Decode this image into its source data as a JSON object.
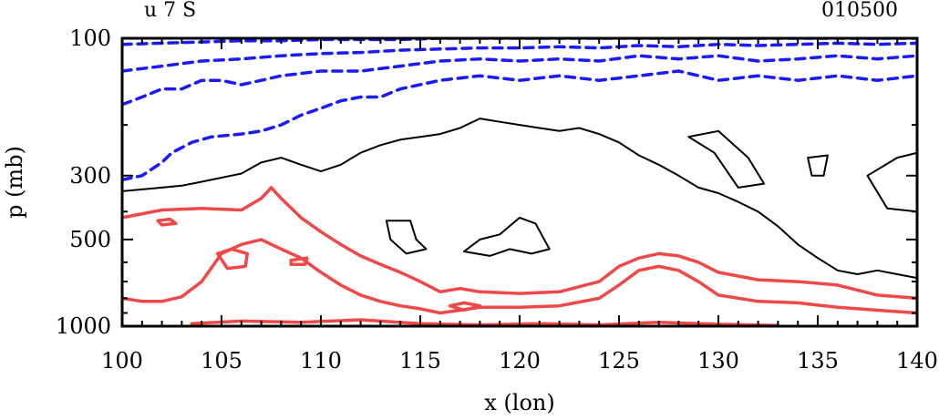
{
  "chart_data": {
    "type": "contour",
    "title_left": "u 7 S",
    "title_right": "010500",
    "xlabel": "x (lon)",
    "ylabel": "p (mb)",
    "xlim": [
      100,
      140
    ],
    "ylim": [
      1000,
      100
    ],
    "y_scale": "log",
    "x_ticks": [
      100,
      105,
      110,
      115,
      120,
      125,
      130,
      135,
      140
    ],
    "y_ticks": [
      100,
      300,
      500,
      1000
    ],
    "colors": {
      "negative": "#1a1aff",
      "zero": "#000000",
      "positive": "#f04848"
    },
    "contours": [
      {
        "kind": "zero",
        "style": "solid",
        "color": "#000000",
        "points": [
          [
            100,
            340
          ],
          [
            101,
            335
          ],
          [
            102,
            330
          ],
          [
            103,
            325
          ],
          [
            104,
            315
          ],
          [
            105,
            305
          ],
          [
            106,
            295
          ],
          [
            107,
            270
          ],
          [
            108,
            260
          ],
          [
            109,
            275
          ],
          [
            110,
            290
          ],
          [
            111,
            275
          ],
          [
            112,
            250
          ],
          [
            113,
            235
          ],
          [
            114,
            225
          ],
          [
            115,
            220
          ],
          [
            116,
            215
          ],
          [
            117,
            205
          ],
          [
            118,
            190
          ],
          [
            119,
            195
          ],
          [
            120,
            200
          ],
          [
            121,
            205
          ],
          [
            122,
            210
          ],
          [
            123,
            205
          ],
          [
            124,
            215
          ],
          [
            125,
            230
          ],
          [
            126,
            255
          ],
          [
            127,
            275
          ],
          [
            128,
            300
          ],
          [
            129,
            330
          ],
          [
            130,
            345
          ],
          [
            131,
            370
          ],
          [
            132,
            400
          ],
          [
            133,
            450
          ],
          [
            134,
            520
          ],
          [
            135,
            580
          ],
          [
            136,
            640
          ],
          [
            137,
            660
          ],
          [
            138,
            640
          ],
          [
            139,
            660
          ],
          [
            140,
            680
          ]
        ]
      },
      {
        "kind": "zero",
        "style": "solid",
        "color": "#000000",
        "points": [
          [
            117.2,
            550
          ],
          [
            118,
            500
          ],
          [
            119,
            480
          ],
          [
            120,
            420
          ],
          [
            120.8,
            440
          ],
          [
            121.5,
            540
          ],
          [
            120.6,
            560
          ],
          [
            119.5,
            540
          ],
          [
            118.5,
            570
          ],
          [
            117.2,
            550
          ]
        ]
      },
      {
        "kind": "zero",
        "style": "solid",
        "color": "#000000",
        "points": [
          [
            113.3,
            430
          ],
          [
            114.5,
            430
          ],
          [
            114.8,
            500
          ],
          [
            115.3,
            540
          ],
          [
            114.3,
            560
          ],
          [
            113.5,
            500
          ],
          [
            113.3,
            430
          ]
        ]
      },
      {
        "kind": "zero",
        "style": "solid",
        "color": "#000000",
        "points": [
          [
            128.5,
            220
          ],
          [
            130,
            210
          ],
          [
            131.5,
            260
          ],
          [
            132.3,
            320
          ],
          [
            131,
            330
          ],
          [
            129.8,
            250
          ],
          [
            128.5,
            220
          ]
        ]
      },
      {
        "kind": "zero",
        "style": "solid",
        "color": "#000000",
        "points": [
          [
            134.5,
            260
          ],
          [
            135.5,
            255
          ],
          [
            135.3,
            300
          ],
          [
            134.7,
            300
          ],
          [
            134.5,
            260
          ]
        ]
      },
      {
        "kind": "zero",
        "style": "solid",
        "color": "#000000",
        "points": [
          [
            137.5,
            300
          ],
          [
            139,
            260
          ],
          [
            140,
            250
          ],
          [
            140,
            400
          ],
          [
            138.5,
            390
          ],
          [
            137.5,
            300
          ]
        ]
      },
      {
        "kind": "negative",
        "style": "dashed",
        "color": "#1a1aff",
        "points": [
          [
            100,
            310
          ],
          [
            101,
            300
          ],
          [
            102,
            270
          ],
          [
            102.5,
            250
          ],
          [
            103.5,
            230
          ],
          [
            104.5,
            220
          ],
          [
            106,
            215
          ],
          [
            107,
            210
          ],
          [
            108,
            200
          ],
          [
            109,
            185
          ],
          [
            110,
            175
          ],
          [
            111,
            165
          ],
          [
            112,
            160
          ],
          [
            113,
            160
          ],
          [
            114,
            150
          ],
          [
            116,
            140
          ],
          [
            118,
            135
          ],
          [
            120,
            140
          ],
          [
            122,
            135
          ],
          [
            124,
            140
          ],
          [
            126,
            135
          ],
          [
            128,
            130
          ],
          [
            130,
            140
          ],
          [
            132,
            135
          ],
          [
            134,
            140
          ],
          [
            136,
            135
          ],
          [
            138,
            140
          ],
          [
            140,
            135
          ]
        ]
      },
      {
        "kind": "negative",
        "style": "dashed",
        "color": "#1a1aff",
        "points": [
          [
            100,
            170
          ],
          [
            101,
            160
          ],
          [
            102,
            150
          ],
          [
            103,
            150
          ],
          [
            104,
            140
          ],
          [
            105,
            140
          ],
          [
            106,
            145
          ],
          [
            107,
            140
          ],
          [
            108,
            135
          ],
          [
            110,
            130
          ],
          [
            112,
            130
          ],
          [
            114,
            125
          ],
          [
            116,
            120
          ],
          [
            118,
            118
          ],
          [
            120,
            120
          ],
          [
            122,
            118
          ],
          [
            124,
            120
          ],
          [
            126,
            115
          ],
          [
            128,
            118
          ],
          [
            130,
            115
          ],
          [
            132,
            120
          ],
          [
            134,
            118
          ],
          [
            136,
            115
          ],
          [
            138,
            118
          ],
          [
            140,
            115
          ]
        ]
      },
      {
        "kind": "negative",
        "style": "dashed",
        "color": "#1a1aff",
        "points": [
          [
            100,
            130
          ],
          [
            102,
            125
          ],
          [
            104,
            120
          ],
          [
            106,
            118
          ],
          [
            108,
            115
          ],
          [
            110,
            113
          ],
          [
            112,
            112
          ],
          [
            114,
            110
          ],
          [
            116,
            109
          ],
          [
            118,
            108
          ],
          [
            120,
            108
          ],
          [
            122,
            107
          ],
          [
            124,
            108
          ],
          [
            126,
            106
          ],
          [
            128,
            107
          ],
          [
            130,
            105
          ],
          [
            132,
            106
          ],
          [
            134,
            105
          ],
          [
            136,
            104
          ],
          [
            138,
            105
          ],
          [
            140,
            104
          ]
        ]
      },
      {
        "kind": "negative",
        "style": "dashed",
        "color": "#1a1aff",
        "points": [
          [
            100,
            105
          ],
          [
            102,
            104
          ],
          [
            104,
            103
          ],
          [
            106,
            102
          ],
          [
            108,
            102
          ],
          [
            110,
            101
          ],
          [
            112,
            101
          ],
          [
            114,
            101
          ],
          [
            116,
            100
          ],
          [
            118,
            100
          ],
          [
            120,
            100
          ],
          [
            122,
            100
          ],
          [
            124,
            100
          ],
          [
            126,
            100
          ],
          [
            128,
            100
          ],
          [
            130,
            100
          ],
          [
            132,
            100
          ],
          [
            134,
            100
          ],
          [
            136,
            100
          ],
          [
            138,
            100
          ],
          [
            140,
            100
          ]
        ]
      },
      {
        "kind": "positive",
        "style": "solid",
        "color": "#f04848",
        "points": [
          [
            100,
            420
          ],
          [
            102,
            395
          ],
          [
            104,
            390
          ],
          [
            106,
            395
          ],
          [
            107,
            360
          ],
          [
            107.5,
            330
          ],
          [
            108,
            360
          ],
          [
            109,
            420
          ],
          [
            110,
            470
          ],
          [
            111,
            520
          ],
          [
            112,
            570
          ],
          [
            113,
            610
          ],
          [
            114,
            650
          ],
          [
            115,
            700
          ],
          [
            116,
            760
          ],
          [
            117,
            740
          ],
          [
            118,
            760
          ],
          [
            120,
            770
          ],
          [
            122,
            760
          ],
          [
            124,
            700
          ],
          [
            125,
            620
          ],
          [
            126,
            580
          ],
          [
            127,
            560
          ],
          [
            128,
            570
          ],
          [
            129,
            600
          ],
          [
            130,
            650
          ],
          [
            132,
            690
          ],
          [
            134,
            700
          ],
          [
            136,
            720
          ],
          [
            138,
            780
          ],
          [
            140,
            800
          ]
        ]
      },
      {
        "kind": "positive",
        "style": "solid",
        "color": "#f04848",
        "points": [
          [
            100,
            800
          ],
          [
            101,
            820
          ],
          [
            102,
            820
          ],
          [
            103,
            790
          ],
          [
            104,
            700
          ],
          [
            105,
            560
          ],
          [
            106,
            520
          ],
          [
            107,
            500
          ],
          [
            108,
            540
          ],
          [
            109,
            580
          ],
          [
            110,
            650
          ],
          [
            111,
            720
          ],
          [
            112,
            780
          ],
          [
            113,
            820
          ],
          [
            114,
            850
          ],
          [
            115,
            870
          ],
          [
            116,
            900
          ],
          [
            117,
            880
          ],
          [
            118,
            860
          ],
          [
            120,
            860
          ],
          [
            122,
            850
          ],
          [
            124,
            800
          ],
          [
            125,
            720
          ],
          [
            126,
            640
          ],
          [
            127,
            620
          ],
          [
            128,
            640
          ],
          [
            129,
            700
          ],
          [
            130,
            780
          ],
          [
            132,
            820
          ],
          [
            134,
            830
          ],
          [
            136,
            860
          ],
          [
            138,
            880
          ],
          [
            140,
            900
          ]
        ]
      },
      {
        "kind": "positive",
        "style": "solid",
        "color": "#f04848",
        "points": [
          [
            104.8,
            560
          ],
          [
            105.5,
            540
          ],
          [
            106.3,
            560
          ],
          [
            106.2,
            620
          ],
          [
            105.3,
            630
          ],
          [
            104.8,
            560
          ]
        ]
      },
      {
        "kind": "positive",
        "style": "solid",
        "color": "#f04848",
        "points": [
          [
            108.5,
            590
          ],
          [
            109.3,
            580
          ],
          [
            109.2,
            610
          ],
          [
            108.5,
            610
          ],
          [
            108.5,
            590
          ]
        ]
      },
      {
        "kind": "positive",
        "style": "solid",
        "color": "#f04848",
        "points": [
          [
            101.8,
            430
          ],
          [
            102.4,
            425
          ],
          [
            102.7,
            440
          ],
          [
            102,
            445
          ],
          [
            101.8,
            430
          ]
        ]
      },
      {
        "kind": "positive",
        "style": "solid",
        "color": "#f04848",
        "points": [
          [
            116.5,
            850
          ],
          [
            117.2,
            830
          ],
          [
            118,
            850
          ],
          [
            117.2,
            880
          ],
          [
            116.5,
            850
          ]
        ]
      },
      {
        "kind": "positive",
        "style": "solid",
        "color": "#f04848",
        "points": [
          [
            103.5,
            980
          ],
          [
            106,
            960
          ],
          [
            109,
            970
          ],
          [
            112,
            950
          ],
          [
            115,
            980
          ],
          [
            118,
            990
          ],
          [
            121,
            980
          ],
          [
            124,
            990
          ],
          [
            127,
            970
          ],
          [
            130,
            985
          ],
          [
            133,
            995
          ]
        ]
      }
    ]
  }
}
